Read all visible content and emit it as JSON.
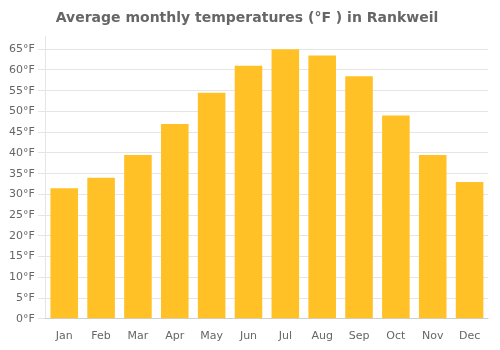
{
  "chart_data": {
    "type": "bar",
    "title": "Average monthly temperatures (°F ) in Rankweil",
    "categories": [
      "Jan",
      "Feb",
      "Mar",
      "Apr",
      "May",
      "Jun",
      "Jul",
      "Aug",
      "Sep",
      "Oct",
      "Nov",
      "Dec"
    ],
    "values": [
      31.5,
      34.0,
      39.5,
      47.0,
      54.5,
      61.0,
      65.0,
      63.5,
      58.5,
      49.0,
      39.5,
      33.0
    ],
    "color": "#FFC125",
    "ylim": [
      0,
      68
    ],
    "yticks": [
      {
        "value": 0,
        "label": "0°F"
      },
      {
        "value": 5,
        "label": "5°F"
      },
      {
        "value": 10,
        "label": "10°F"
      },
      {
        "value": 15,
        "label": "15°F"
      },
      {
        "value": 20,
        "label": "20°F"
      },
      {
        "value": 25,
        "label": "25°F"
      },
      {
        "value": 30,
        "label": "30°F"
      },
      {
        "value": 35,
        "label": "35°F"
      },
      {
        "value": 40,
        "label": "40°F"
      },
      {
        "value": 45,
        "label": "45°F"
      },
      {
        "value": 50,
        "label": "50°F"
      },
      {
        "value": 55,
        "label": "55°F"
      },
      {
        "value": 60,
        "label": "60°F"
      },
      {
        "value": 65,
        "label": "65°F"
      }
    ],
    "grid": true
  }
}
